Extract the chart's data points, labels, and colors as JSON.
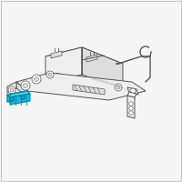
{
  "bg_color": "#f5f5f5",
  "border_color": "#bbbbbb",
  "line_color": "#555555",
  "line_color2": "#777777",
  "highlight_color": "#1ab8d8",
  "highlight_light": "#55d0e8",
  "highlight_dark": "#0088aa",
  "fill_white": "#ffffff",
  "fill_light": "#eeeeee",
  "fill_mid": "#dddddd",
  "fill_dark": "#cccccc"
}
